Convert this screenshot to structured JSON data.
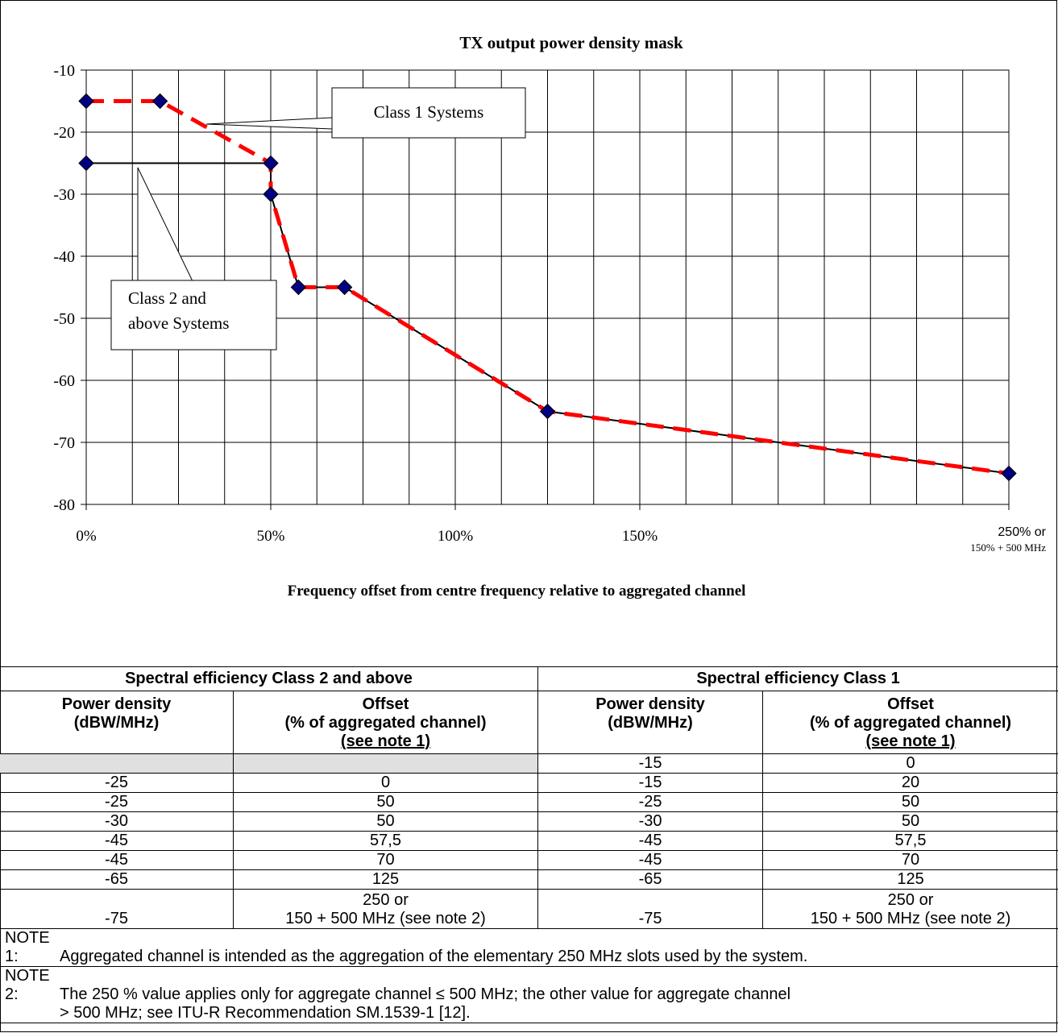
{
  "chart_data": {
    "type": "line",
    "title": "TX output power density mask",
    "xlabel": "Frequency offset from centre frequency relative to aggregated channel",
    "ylabel": "",
    "xlim": [
      0,
      250
    ],
    "ylim": [
      -80,
      -10
    ],
    "x_grid_step": 12.5,
    "y_grid_step": 10,
    "grid": true,
    "x_ticks": [
      {
        "value": 0,
        "label": "0%"
      },
      {
        "value": 50,
        "label": "50%"
      },
      {
        "value": 100,
        "label": "100%"
      },
      {
        "value": 150,
        "label": "150%"
      },
      {
        "value": 250,
        "label": "250%  or",
        "sublabel": "150% + 500 MHz"
      }
    ],
    "y_ticks": [
      -10,
      -20,
      -30,
      -40,
      -50,
      -60,
      -70,
      -80
    ],
    "series": [
      {
        "color": "#ff0000",
        "style": "dashed",
        "points": [
          [
            0,
            -15
          ],
          [
            20,
            -15
          ],
          [
            50,
            -25
          ],
          [
            50,
            -30
          ],
          [
            57.5,
            -45
          ],
          [
            70,
            -45
          ],
          [
            125,
            -65
          ],
          [
            250,
            -75
          ]
        ]
      },
      {
        "color": "#000000",
        "style": "solid",
        "points": [
          [
            0,
            -25
          ],
          [
            50,
            -25
          ],
          [
            50,
            -30
          ],
          [
            57.5,
            -45
          ],
          [
            70,
            -45
          ],
          [
            125,
            -65
          ],
          [
            250,
            -75
          ]
        ]
      }
    ],
    "marker_color": "#000080",
    "annotations": [
      {
        "text": "Class 1 Systems",
        "points_to": [
          [
            33,
            -18.8
          ],
          [
            0,
            -18.8
          ]
        ]
      },
      {
        "text_lines": [
          "Class 2 and",
          "above Systems"
        ],
        "points_to": [
          [
            14,
            -25.5
          ],
          [
            14,
            -25.5
          ]
        ]
      }
    ]
  },
  "table": {
    "group_headers": [
      "Spectral efficiency Class 2 and above",
      "Spectral efficiency Class 1"
    ],
    "col_headers": [
      {
        "line1": "Power density",
        "line2": "(dBW/MHz)"
      },
      {
        "line1": "Offset",
        "line2": "(% of aggregated channel)",
        "line3": "(see note 1)"
      },
      {
        "line1": "Power density",
        "line2": "(dBW/MHz)"
      },
      {
        "line1": "Offset",
        "line2": "(% of aggregated channel)",
        "line3": "(see note 1)"
      }
    ],
    "rows": [
      [
        "",
        "",
        "-15",
        "0"
      ],
      [
        "-25",
        "0",
        "-15",
        "20"
      ],
      [
        "-25",
        "50",
        "-25",
        "50"
      ],
      [
        "-30",
        "50",
        "-30",
        "50"
      ],
      [
        "-45",
        "57,5",
        "-45",
        "57,5"
      ],
      [
        "-45",
        "70",
        "-45",
        "70"
      ],
      [
        "-65",
        "125",
        "-65",
        "125"
      ]
    ],
    "last_row": {
      "c1": "-75",
      "c2_line1": "250 or",
      "c2_line2": "150 + 500 MHz (see note 2)",
      "c3": "-75",
      "c4_line1": "250 or",
      "c4_line2": "150 + 500 MHz (see note 2)"
    },
    "notes": [
      {
        "label": "NOTE 1:",
        "text": "Aggregated channel is intended as the aggregation of the elementary 250 MHz slots used by the system."
      },
      {
        "label": "NOTE 2:",
        "text": "The 250 % value applies only for aggregate channel ≤ 500 MHz; the other value for aggregate channel",
        "text2": "> 500 MHz; see ITU-R Recommendation SM.1539-1 [12]."
      }
    ]
  }
}
